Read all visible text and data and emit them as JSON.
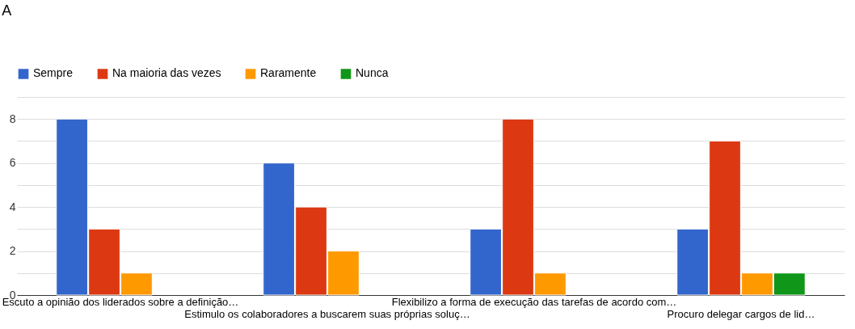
{
  "chart_data": {
    "type": "bar",
    "title": "A",
    "categories": [
      "Escuto a opinião dos liderados sobre a definição…",
      "Estimulo os colaboradores a buscarem suas próprias soluç…",
      "Flexibilizo a forma de execução das tarefas de acordo com…",
      "Procuro delegar cargos de lid…"
    ],
    "series": [
      {
        "name": "Sempre",
        "color": "#3366cc",
        "values": [
          8,
          6,
          3,
          3
        ]
      },
      {
        "name": "Na maioria das vezes",
        "color": "#dc3912",
        "values": [
          3,
          4,
          8,
          7
        ]
      },
      {
        "name": "Raramente",
        "color": "#ff9900",
        "values": [
          1,
          2,
          1,
          1
        ]
      },
      {
        "name": "Nunca",
        "color": "#109618",
        "values": [
          0,
          0,
          0,
          1
        ]
      }
    ],
    "ylim": [
      0,
      9
    ],
    "yticks": [
      0,
      {
        "value": 1,
        "label": null
      },
      2,
      {
        "value": 3,
        "label": null
      },
      4,
      {
        "value": 5,
        "label": null
      },
      6,
      {
        "value": 7,
        "label": null
      },
      8,
      {
        "value": 9,
        "label": null
      }
    ],
    "grid": "y",
    "legend": "top"
  }
}
